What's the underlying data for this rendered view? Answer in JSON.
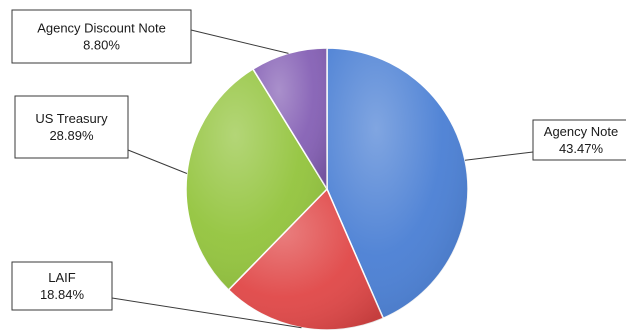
{
  "chart_data": {
    "type": "pie",
    "title": "",
    "slices": [
      {
        "label": "Agency Note",
        "value": 43.47,
        "value_label": "43.47%",
        "color": "#4a7fd4"
      },
      {
        "label": "LAIF",
        "value": 18.84,
        "value_label": "18.84%",
        "color": "#e04747"
      },
      {
        "label": "US Treasury",
        "value": 28.89,
        "value_label": "28.89%",
        "color": "#93c43d"
      },
      {
        "label": "Agency Discount Note",
        "value": 8.8,
        "value_label": "8.80%",
        "color": "#8560b5"
      }
    ],
    "start_angle": "12 o'clock",
    "direction": "clockwise",
    "legend": "none",
    "data_labels": "callout boxes with leader lines"
  }
}
